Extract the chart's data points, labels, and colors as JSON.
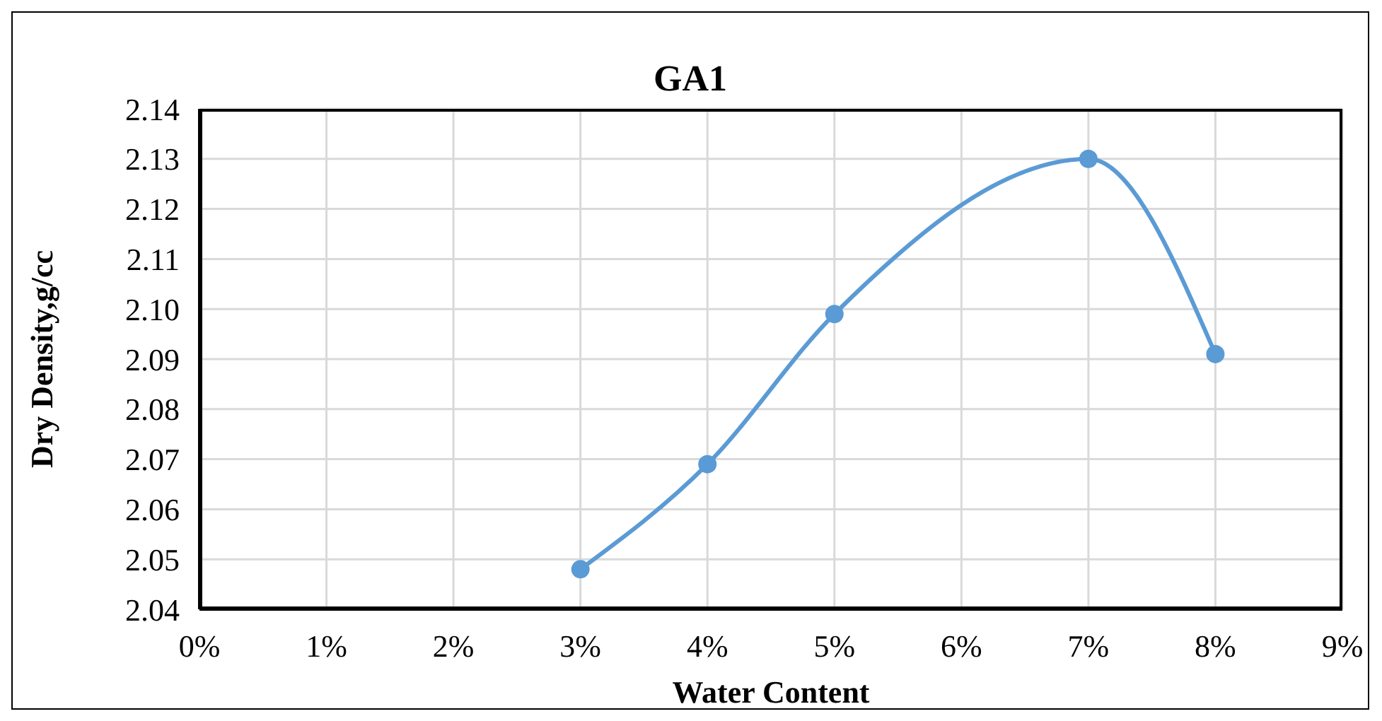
{
  "chart_data": {
    "type": "line",
    "title": "GA1",
    "xlabel": "Water Content",
    "ylabel": "Dry Density,g/cc",
    "x": [
      3,
      4,
      5,
      7,
      8
    ],
    "series": [
      {
        "color": "#5b9bd5",
        "values": [
          2.048,
          2.069,
          2.099,
          2.13,
          2.091
        ]
      }
    ],
    "xlim": [
      0,
      9
    ],
    "xticks": [
      {
        "value": 0,
        "label": "0%"
      },
      {
        "value": 1,
        "label": "1%"
      },
      {
        "value": 2,
        "label": "2%"
      },
      {
        "value": 3,
        "label": "3%"
      },
      {
        "value": 4,
        "label": "4%"
      },
      {
        "value": 5,
        "label": "5%"
      },
      {
        "value": 6,
        "label": "6%"
      },
      {
        "value": 7,
        "label": "7%"
      },
      {
        "value": 8,
        "label": "8%"
      },
      {
        "value": 9,
        "label": "9%"
      }
    ],
    "ylim": [
      2.04,
      2.14
    ],
    "yticks": [
      {
        "value": 2.04,
        "label": "2.04"
      },
      {
        "value": 2.05,
        "label": "2.05"
      },
      {
        "value": 2.06,
        "label": "2.06"
      },
      {
        "value": 2.07,
        "label": "2.07"
      },
      {
        "value": 2.08,
        "label": "2.08"
      },
      {
        "value": 2.09,
        "label": "2.09"
      },
      {
        "value": 2.1,
        "label": "2.10"
      },
      {
        "value": 2.11,
        "label": "2.11"
      },
      {
        "value": 2.12,
        "label": "2.12"
      },
      {
        "value": 2.13,
        "label": "2.13"
      },
      {
        "value": 2.14,
        "label": "2.14"
      }
    ],
    "grid": true,
    "marker": "circle",
    "line_style": "solid"
  }
}
